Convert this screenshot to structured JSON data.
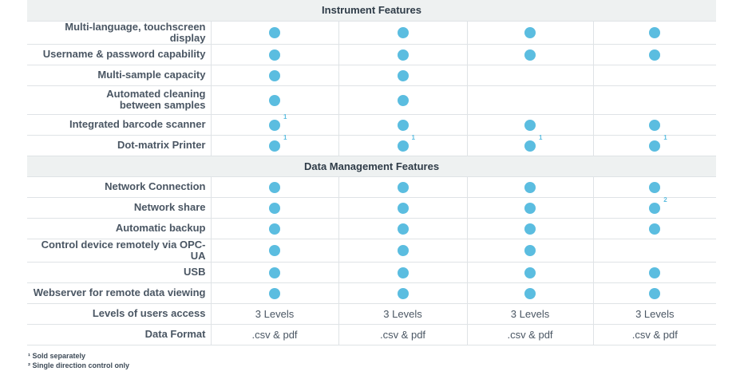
{
  "sections": [
    {
      "title": "Instrument Features",
      "rows": [
        {
          "label": "Multi-language, touchscreen display",
          "cells": [
            {
              "dot": true
            },
            {
              "dot": true
            },
            {
              "dot": true
            },
            {
              "dot": true
            }
          ]
        },
        {
          "label": "Username & password capability",
          "cells": [
            {
              "dot": true
            },
            {
              "dot": true
            },
            {
              "dot": true
            },
            {
              "dot": true
            }
          ]
        },
        {
          "label": "Multi-sample capacity",
          "cells": [
            {
              "dot": true
            },
            {
              "dot": true
            },
            {},
            {}
          ]
        },
        {
          "label": "Automated cleaning\nbetween samples",
          "tall": true,
          "cells": [
            {
              "dot": true
            },
            {
              "dot": true
            },
            {},
            {}
          ]
        },
        {
          "label": "Integrated barcode scanner",
          "cells": [
            {
              "dot": true,
              "note": "1"
            },
            {
              "dot": true
            },
            {
              "dot": true
            },
            {
              "dot": true
            }
          ]
        },
        {
          "label": "Dot-matrix Printer",
          "cells": [
            {
              "dot": true,
              "note": "1"
            },
            {
              "dot": true,
              "note": "1"
            },
            {
              "dot": true,
              "note": "1"
            },
            {
              "dot": true,
              "note": "1"
            }
          ]
        }
      ]
    },
    {
      "title": "Data Management Features",
      "rows": [
        {
          "label": "Network Connection",
          "cells": [
            {
              "dot": true
            },
            {
              "dot": true
            },
            {
              "dot": true
            },
            {
              "dot": true
            }
          ]
        },
        {
          "label": "Network share",
          "cells": [
            {
              "dot": true
            },
            {
              "dot": true
            },
            {
              "dot": true
            },
            {
              "dot": true,
              "note": "2"
            }
          ]
        },
        {
          "label": "Automatic backup",
          "cells": [
            {
              "dot": true
            },
            {
              "dot": true
            },
            {
              "dot": true
            },
            {
              "dot": true
            }
          ]
        },
        {
          "label": "Control device remotely via OPC-UA",
          "cells": [
            {
              "dot": true
            },
            {
              "dot": true
            },
            {
              "dot": true
            },
            {}
          ]
        },
        {
          "label": "USB",
          "cells": [
            {
              "dot": true
            },
            {
              "dot": true
            },
            {
              "dot": true
            },
            {
              "dot": true
            }
          ]
        },
        {
          "label": "Webserver for remote data viewing",
          "cells": [
            {
              "dot": true
            },
            {
              "dot": true
            },
            {
              "dot": true
            },
            {
              "dot": true
            }
          ]
        },
        {
          "label": "Levels of users access",
          "cells": [
            {
              "text": "3 Levels"
            },
            {
              "text": "3 Levels"
            },
            {
              "text": "3 Levels"
            },
            {
              "text": "3 Levels"
            }
          ]
        },
        {
          "label": "Data Format",
          "cells": [
            {
              "text": ".csv & pdf"
            },
            {
              "text": ".csv & pdf"
            },
            {
              "text": ".csv & pdf"
            },
            {
              "text": ".csv & pdf"
            }
          ]
        }
      ]
    }
  ],
  "footnotes": [
    "¹ Sold separately",
    "² Single direction control only"
  ],
  "colors": {
    "dot": "#5bbde0",
    "section_bg": "#eef1f1",
    "border": "#dfe3e6"
  }
}
